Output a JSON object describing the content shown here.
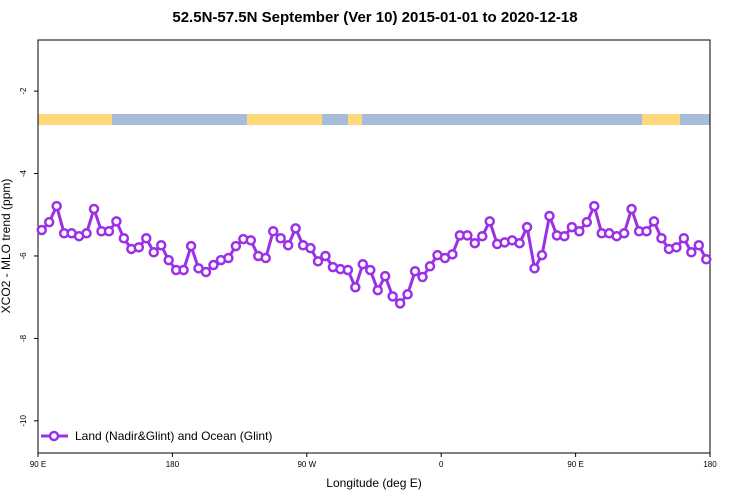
{
  "chart_data": {
    "type": "line",
    "title": "52.5N-57.5N September (Ver 10)   2015-01-01 to 2020-12-18",
    "x_label": "Longitude (deg E)",
    "y_label": "XCO2 - MLO trend (ppm)",
    "xlim": [
      90,
      540
    ],
    "ylim": [
      -10.78,
      -0.76
    ],
    "xticks": [
      {
        "value": 90,
        "label": "90 E"
      },
      180,
      {
        "value": 270,
        "label": "90 W"
      },
      {
        "value": 360,
        "label": "0"
      },
      {
        "value": 450,
        "label": "90 E"
      },
      {
        "value": 540,
        "label": "180"
      }
    ],
    "yticks": [
      -10,
      -8,
      -6,
      -4,
      -2
    ],
    "legend": "bottom-left",
    "x": [
      92.5,
      97.5,
      102.5,
      107.5,
      112.5,
      117.5,
      122.5,
      127.5,
      132.5,
      137.5,
      142.5,
      147.5,
      152.5,
      157.5,
      162.5,
      167.5,
      172.5,
      177.5,
      182.5,
      187.5,
      192.5,
      197.5,
      202.5,
      207.5,
      212.5,
      217.5,
      222.5,
      227.5,
      232.5,
      237.5,
      242.5,
      247.5,
      252.5,
      257.5,
      262.5,
      267.5,
      272.5,
      277.5,
      282.5,
      287.5,
      292.5,
      297.5,
      302.5,
      307.5,
      312.5,
      317.5,
      322.5,
      327.5,
      332.5,
      337.5,
      342.5,
      347.5,
      352.5,
      357.5,
      362.5,
      367.5,
      372.5,
      377.5,
      382.5,
      387.5,
      392.5,
      397.5,
      402.5,
      407.5,
      412.5,
      417.5,
      422.5,
      427.5,
      432.5,
      437.5,
      442.5,
      447.5,
      452.5,
      457.5,
      462.5,
      467.5,
      472.5,
      477.5,
      482.5,
      487.5,
      492.5,
      497.5,
      502.5,
      507.5,
      512.5,
      517.5,
      522.5,
      527.5,
      532.5,
      537.5
    ],
    "series": [
      {
        "name": "Land (Nadir&Glint) and Ocean (Glint)",
        "color": "#9b30e6",
        "values": [
          -5.37,
          -5.18,
          -4.79,
          -5.45,
          -5.45,
          -5.52,
          -5.45,
          -4.86,
          -5.4,
          -5.4,
          -5.16,
          -5.57,
          -5.83,
          -5.79,
          -5.57,
          -5.91,
          -5.74,
          -6.1,
          -6.34,
          -6.34,
          -5.76,
          -6.3,
          -6.39,
          -6.22,
          -6.1,
          -6.05,
          -5.76,
          -5.59,
          -5.62,
          -6.0,
          -6.05,
          -5.4,
          -5.57,
          -5.74,
          -5.33,
          -5.74,
          -5.81,
          -6.13,
          -6.0,
          -6.27,
          -6.32,
          -6.34,
          -6.76,
          -6.2,
          -6.34,
          -6.83,
          -6.49,
          -6.98,
          -7.15,
          -6.93,
          -6.37,
          -6.51,
          -6.25,
          -5.98,
          -6.05,
          -5.96,
          -5.5,
          -5.5,
          -5.69,
          -5.52,
          -5.16,
          -5.71,
          -5.67,
          -5.62,
          -5.69,
          -5.3,
          -6.3,
          -5.98,
          -5.03,
          -5.5,
          -5.52,
          -5.3,
          -5.4,
          -5.18,
          -4.79,
          -5.45,
          -5.45,
          -5.52,
          -5.45,
          -4.86,
          -5.4,
          -5.4,
          -5.16,
          -5.57,
          -5.83,
          -5.79,
          -5.57,
          -5.91,
          -5.74,
          -6.08
        ]
      }
    ]
  }
}
